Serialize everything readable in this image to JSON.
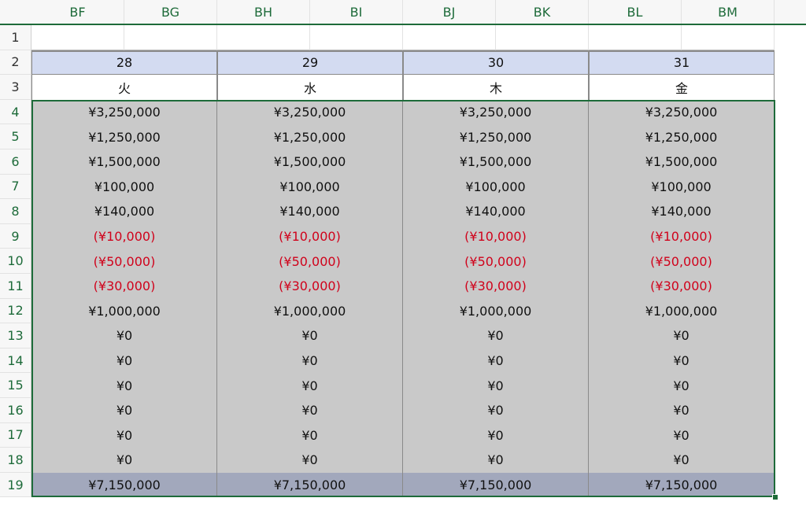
{
  "column_headers": [
    "BF",
    "BG",
    "BH",
    "BI",
    "BJ",
    "BK",
    "BL",
    "BM"
  ],
  "row_numbers": [
    1,
    2,
    3,
    4,
    5,
    6,
    7,
    8,
    9,
    10,
    11,
    12,
    13,
    14,
    15,
    16,
    17,
    18,
    19
  ],
  "date_row": [
    28,
    29,
    30,
    31
  ],
  "weekday_row": [
    "火",
    "水",
    "木",
    "金"
  ],
  "rows": [
    [
      "¥3,250,000",
      "¥3,250,000",
      "¥3,250,000",
      "¥3,250,000"
    ],
    [
      "¥1,250,000",
      "¥1,250,000",
      "¥1,250,000",
      "¥1,250,000"
    ],
    [
      "¥1,500,000",
      "¥1,500,000",
      "¥1,500,000",
      "¥1,500,000"
    ],
    [
      "¥100,000",
      "¥100,000",
      "¥100,000",
      "¥100,000"
    ],
    [
      "¥140,000",
      "¥140,000",
      "¥140,000",
      "¥140,000"
    ],
    [
      "(¥10,000)",
      "(¥10,000)",
      "(¥10,000)",
      "(¥10,000)"
    ],
    [
      "(¥50,000)",
      "(¥50,000)",
      "(¥50,000)",
      "(¥50,000)"
    ],
    [
      "(¥30,000)",
      "(¥30,000)",
      "(¥30,000)",
      "(¥30,000)"
    ],
    [
      "¥1,000,000",
      "¥1,000,000",
      "¥1,000,000",
      "¥1,000,000"
    ],
    [
      "¥0",
      "¥0",
      "¥0",
      "¥0"
    ],
    [
      "¥0",
      "¥0",
      "¥0",
      "¥0"
    ],
    [
      "¥0",
      "¥0",
      "¥0",
      "¥0"
    ],
    [
      "¥0",
      "¥0",
      "¥0",
      "¥0"
    ],
    [
      "¥0",
      "¥0",
      "¥0",
      "¥0"
    ],
    [
      "¥0",
      "¥0",
      "¥0",
      "¥0"
    ],
    [
      "¥7,150,000",
      "¥7,150,000",
      "¥7,150,000",
      "¥7,150,000"
    ]
  ]
}
